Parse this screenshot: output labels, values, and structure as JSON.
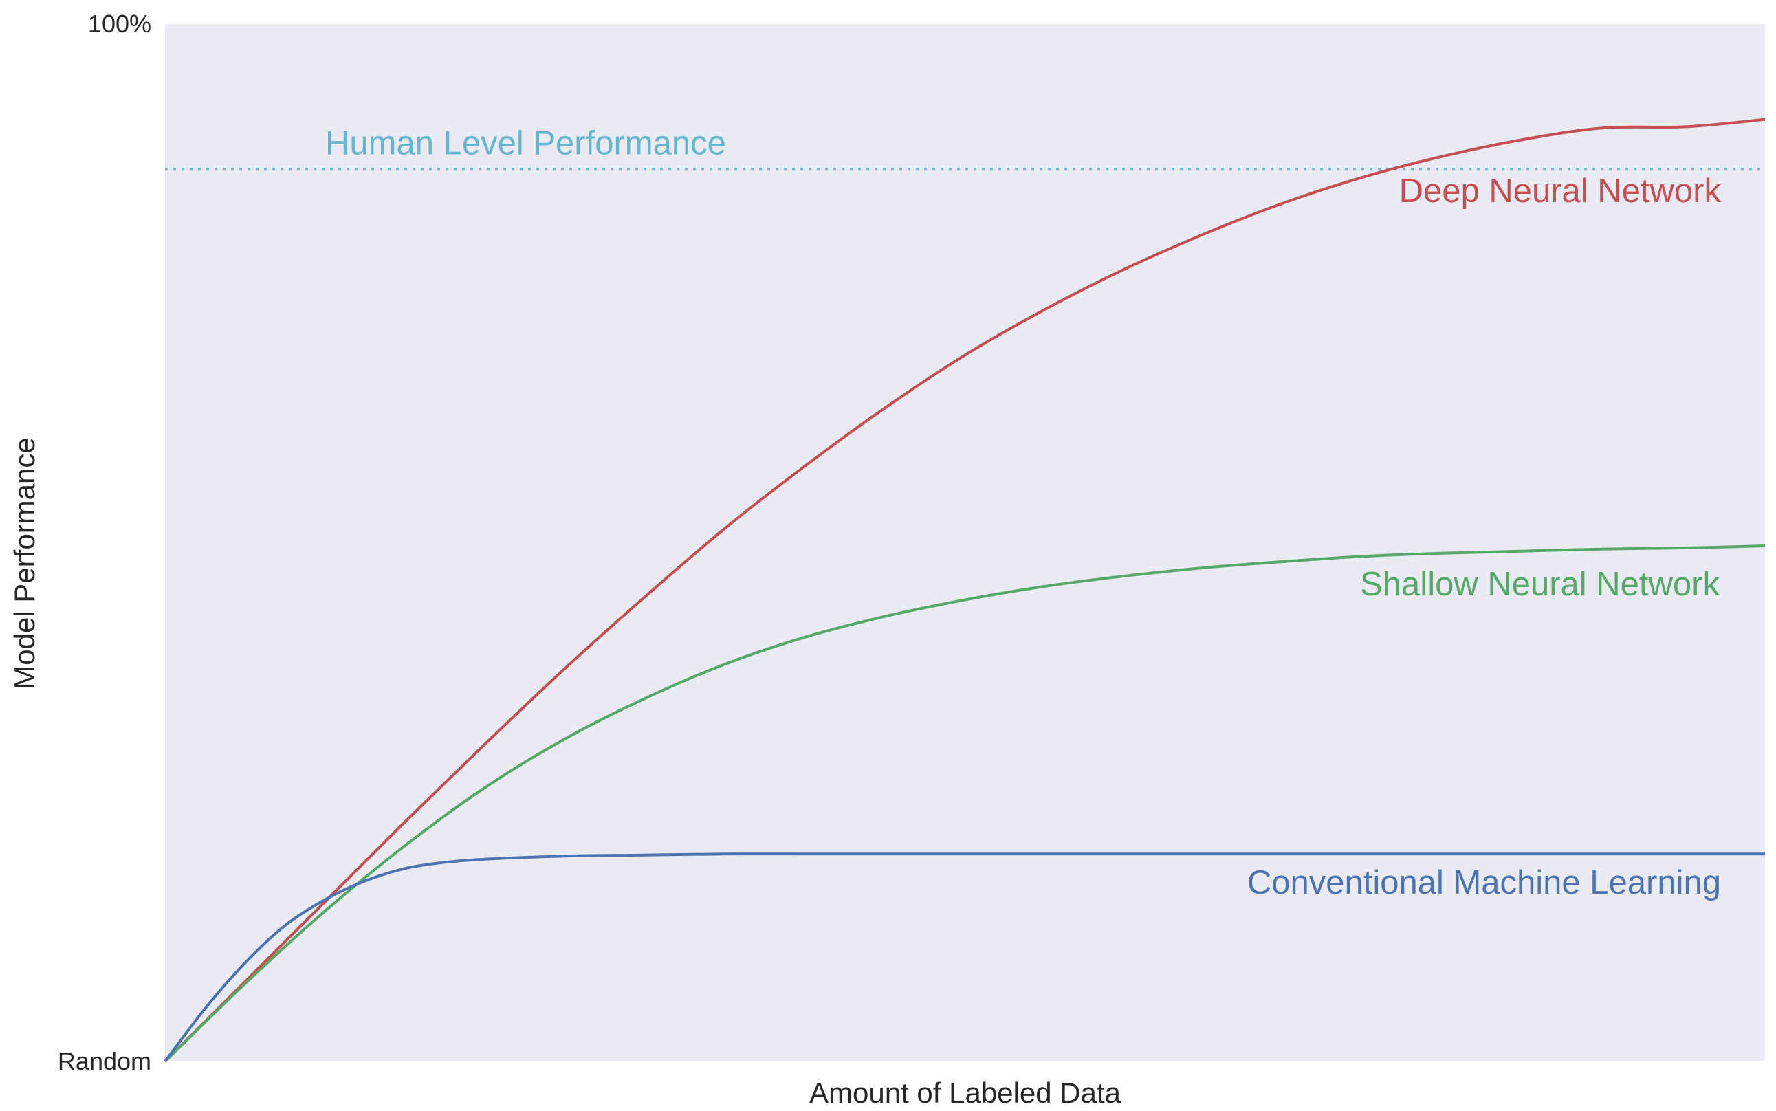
{
  "chart_data": {
    "type": "line",
    "title": "",
    "xlabel": "Amount of Labeled Data",
    "ylabel": "Model Performance",
    "x_range": [
      0,
      1
    ],
    "ylim": [
      0,
      1
    ],
    "yticks": [
      {
        "value": 0,
        "label": "Random"
      },
      {
        "value": 1,
        "label": "100%"
      }
    ],
    "grid": false,
    "background": "#eaeaf2",
    "reference_line": {
      "name": "Human Level Performance",
      "y": 0.86,
      "style": "dotted",
      "color": "#64b5cd"
    },
    "series": [
      {
        "name": "Deep Neural Network",
        "color": "#c44e52",
        "x": [
          0,
          0.05,
          0.1,
          0.15,
          0.2,
          0.25,
          0.3,
          0.35,
          0.4,
          0.45,
          0.5,
          0.55,
          0.6,
          0.65,
          0.7,
          0.75,
          0.8,
          0.85,
          0.9,
          0.95,
          1.0
        ],
        "y": [
          0,
          0.077,
          0.154,
          0.231,
          0.306,
          0.379,
          0.448,
          0.514,
          0.574,
          0.63,
          0.681,
          0.725,
          0.764,
          0.798,
          0.828,
          0.853,
          0.873,
          0.889,
          0.9,
          0.901,
          0.908
        ]
      },
      {
        "name": "Shallow Neural Network",
        "color": "#55a868",
        "x": [
          0,
          0.05,
          0.1,
          0.15,
          0.2,
          0.25,
          0.3,
          0.35,
          0.4,
          0.45,
          0.5,
          0.55,
          0.6,
          0.65,
          0.7,
          0.75,
          0.8,
          0.85,
          0.9,
          0.95,
          1.0
        ],
        "y": [
          0,
          0.075,
          0.145,
          0.208,
          0.264,
          0.311,
          0.35,
          0.383,
          0.409,
          0.429,
          0.445,
          0.458,
          0.468,
          0.476,
          0.482,
          0.487,
          0.49,
          0.492,
          0.494,
          0.495,
          0.497
        ]
      },
      {
        "name": "Conventional Machine Learning",
        "color": "#4c72b0",
        "x": [
          0,
          0.025,
          0.05,
          0.075,
          0.1,
          0.125,
          0.15,
          0.175,
          0.2,
          0.25,
          0.3,
          0.35,
          0.4,
          0.5,
          0.6,
          0.7,
          0.8,
          0.9,
          1.0
        ],
        "y": [
          0,
          0.051,
          0.095,
          0.131,
          0.156,
          0.174,
          0.186,
          0.192,
          0.195,
          0.198,
          0.199,
          0.2,
          0.2,
          0.2,
          0.2,
          0.2,
          0.2,
          0.2,
          0.2
        ]
      }
    ]
  }
}
